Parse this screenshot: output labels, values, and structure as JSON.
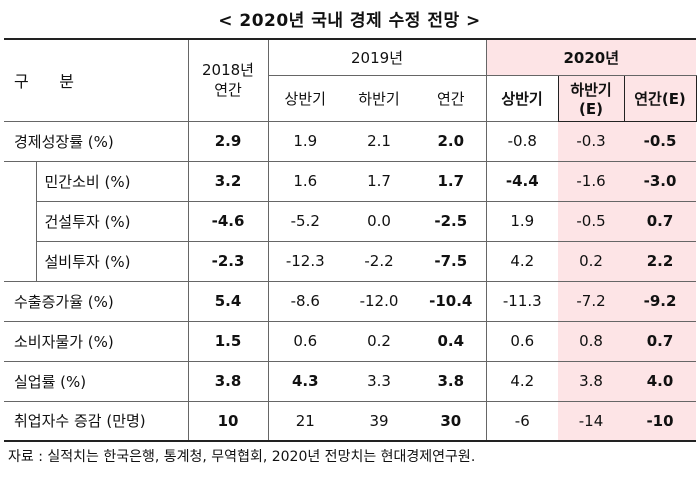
{
  "title": "< 2020년 국내 경제 수정 전망 >",
  "header": {
    "row_label": "구      분",
    "col_2018": "2018년\n연간",
    "group_2019": "2019년",
    "group_2020": "2020년",
    "sub_2019": [
      "상반기",
      "하반기",
      "연간"
    ],
    "sub_2020": [
      "상반기",
      "하반기(E)",
      "연간(E)"
    ]
  },
  "rows": [
    {
      "label": "경제성장률 (%)",
      "values": [
        "2.9",
        "1.9",
        "2.1",
        "2.0",
        "-0.8",
        "-0.3",
        "-0.5"
      ]
    },
    {
      "label": "민간소비 (%)",
      "values": [
        "3.2",
        "1.6",
        "1.7",
        "1.7",
        "-4.4",
        "-1.6",
        "-3.0"
      ]
    },
    {
      "label": "건설투자 (%)",
      "values": [
        "-4.6",
        "-5.2",
        "0.0",
        "-2.5",
        "1.9",
        "-0.5",
        "0.7"
      ]
    },
    {
      "label": "설비투자 (%)",
      "values": [
        "-2.3",
        "-12.3",
        "-2.2",
        "-7.5",
        "4.2",
        "0.2",
        "2.2"
      ]
    },
    {
      "label": "수출증가율 (%)",
      "values": [
        "5.4",
        "-8.6",
        "-12.0",
        "-10.4",
        "-11.3",
        "-7.2",
        "-9.2"
      ]
    },
    {
      "label": "소비자물가 (%)",
      "values": [
        "1.5",
        "0.6",
        "0.2",
        "0.4",
        "0.6",
        "0.8",
        "0.7"
      ]
    },
    {
      "label": "실업률 (%)",
      "values": [
        "3.8",
        "4.3",
        "3.3",
        "3.8",
        "4.2",
        "3.8",
        "4.0"
      ]
    },
    {
      "label": "취업자수 증감 (만명)",
      "values": [
        "10",
        "21",
        "39",
        "30",
        "-6",
        "-14",
        "-10"
      ]
    }
  ],
  "footer": "자료 : 실적치는 한국은행, 통계청, 무역협회, 2020년 전망치는 현대경제연구원."
}
